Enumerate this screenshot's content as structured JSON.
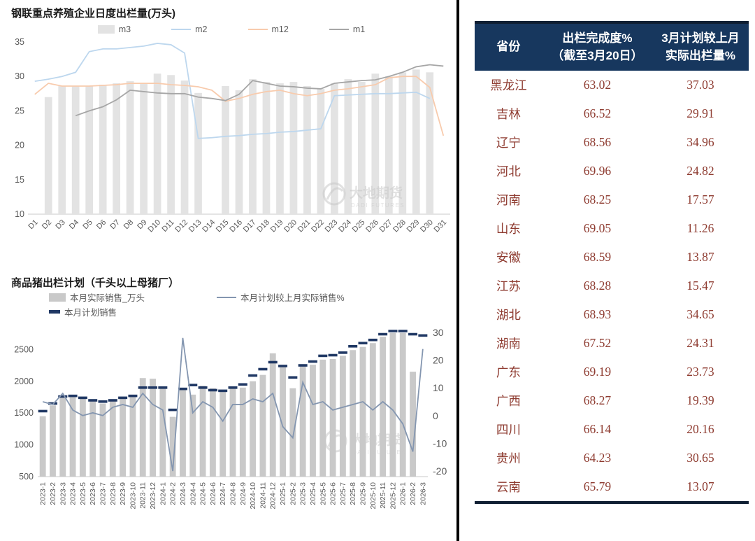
{
  "watermark": {
    "text": "大地期货",
    "subtext": "DADI FUTURES"
  },
  "colors": {
    "divider": "#000000",
    "axis_text": "#595959",
    "watermark": "#c9c9c9",
    "table_header_bg": "#17375e",
    "table_header_text": "#ffffff",
    "table_body_text": "#8e3b30",
    "table_border": "#101f33"
  },
  "chart_data": [
    {
      "type": "bar+line",
      "title": "钢联重点养殖企业日度出栏量(万头)",
      "categories": [
        "D1",
        "D2",
        "D3",
        "D4",
        "D5",
        "D6",
        "D7",
        "D8",
        "D9",
        "D10",
        "D11",
        "D12",
        "D13",
        "D14",
        "D15",
        "D16",
        "D17",
        "D18",
        "D19",
        "D20",
        "D21",
        "D22",
        "D23",
        "D24",
        "D25",
        "D26",
        "D27",
        "D28",
        "D29",
        "D30",
        "D31"
      ],
      "ylim": [
        10,
        35
      ],
      "yticks": [
        10,
        15,
        20,
        25,
        30,
        35
      ],
      "grid": false,
      "legend_position": "top",
      "series": [
        {
          "name": "m3",
          "type": "bar",
          "color": "#e3e3e3",
          "values": [
            null,
            27,
            28.6,
            28.6,
            28.6,
            28.8,
            29,
            29.3,
            29,
            30.4,
            30.2,
            29.4,
            27.6,
            null,
            28.6,
            28,
            29.6,
            29.2,
            29,
            29.2,
            28.6,
            28.2,
            29,
            29.6,
            29.2,
            30.4,
            30,
            30.6,
            31,
            30.6,
            null
          ]
        },
        {
          "name": "m2",
          "type": "line",
          "color": "#bdd7ee",
          "values": [
            29.3,
            29.6,
            30,
            30.6,
            33.6,
            34,
            34,
            34.2,
            34.4,
            34.8,
            34.6,
            33.4,
            21,
            21.1,
            21.3,
            21.4,
            21.6,
            21.7,
            21.9,
            22,
            22.2,
            22.4,
            27.2,
            27.3,
            27.4,
            27.5,
            27.5,
            27.6,
            27.7,
            26.8,
            null
          ]
        },
        {
          "name": "m12",
          "type": "line",
          "color": "#f8cbad",
          "values": [
            27.4,
            29,
            28.6,
            28.6,
            28.6,
            28.7,
            28.8,
            29,
            29,
            29,
            28.8,
            28.7,
            28.5,
            28,
            26.4,
            26.8,
            27.4,
            27.8,
            28,
            27.5,
            27.2,
            27.5,
            28,
            28.2,
            28.5,
            28.8,
            29.8,
            30,
            30,
            28.4,
            21.4
          ]
        },
        {
          "name": "m1",
          "type": "line",
          "color": "#a6a6a6",
          "values": [
            null,
            null,
            null,
            24.3,
            25,
            25.6,
            26.6,
            28,
            27.8,
            27.6,
            27.5,
            27.5,
            27,
            26.8,
            26.5,
            27.4,
            29.4,
            29,
            28.6,
            28.5,
            28.3,
            28.2,
            29,
            29.2,
            29.4,
            29.5,
            30,
            30.6,
            31.4,
            31.7,
            31.5
          ]
        }
      ]
    },
    {
      "type": "bar+line",
      "title": "商品猪出栏计划（千头以上母猪厂）",
      "categories": [
        "2023-1",
        "2023-2",
        "2023-3",
        "2023-4",
        "2023-5",
        "2023-6",
        "2023-7",
        "2023-8",
        "2023-9",
        "2023-10",
        "2023-11",
        "2023-12",
        "2024-1",
        "2024-2",
        "2024-3",
        "2024-4",
        "2024-5",
        "2024-6",
        "2024-7",
        "2024-8",
        "2024-9",
        "2024-10",
        "2024-11",
        "2024-12",
        "2025-1",
        "2025-2",
        "2025-3",
        "2025-4",
        "2025-5",
        "2025-6",
        "2025-7",
        "2025-8",
        "2025-9",
        "2025-10",
        "2025-11",
        "2025-12",
        "2026-1",
        "2026-2",
        "2026-3"
      ],
      "ylim_left": [
        500,
        2900
      ],
      "yticks_left": [
        500,
        1000,
        1500,
        2000,
        2500
      ],
      "ylim_right": [
        -22,
        33
      ],
      "yticks_right": [
        -20,
        -10,
        0,
        10,
        20,
        30
      ],
      "grid": false,
      "legend_position": "top",
      "series": [
        {
          "name": "本月实际销售_万头",
          "type": "bar",
          "axis": "left",
          "color": "#c9c9c9",
          "values": [
            1450,
            1620,
            1760,
            1760,
            1750,
            1700,
            1650,
            1690,
            1740,
            1780,
            2050,
            2040,
            1890,
            1440,
            1890,
            1790,
            1930,
            1890,
            1850,
            1890,
            1900,
            2000,
            2100,
            2440,
            2240,
            1890,
            2250,
            2260,
            2340,
            2350,
            2400,
            2490,
            2540,
            2600,
            2700,
            2760,
            2760,
            2150,
            null
          ]
        },
        {
          "name": "本月计划销售",
          "type": "dash",
          "axis": "left",
          "color": "#203864",
          "values": [
            1530,
            1650,
            1760,
            1770,
            1740,
            1700,
            1680,
            1700,
            1740,
            1770,
            1900,
            1900,
            1900,
            1550,
            1880,
            1940,
            1900,
            1860,
            1850,
            1900,
            1950,
            2090,
            2190,
            2300,
            2240,
            2060,
            2250,
            2310,
            2400,
            2410,
            2450,
            2550,
            2600,
            2650,
            2740,
            2790,
            2790,
            2740,
            2720
          ]
        },
        {
          "name": "本月计划较上月实际销售%",
          "type": "line",
          "axis": "right",
          "color": "#8496b0",
          "values": [
            5,
            4,
            8,
            2,
            0,
            1,
            0,
            3,
            4,
            3,
            8,
            4,
            2,
            -20,
            28,
            1,
            5,
            3,
            -2,
            4,
            4,
            6,
            5,
            8,
            -4,
            -8,
            12,
            4,
            5,
            2,
            3,
            4,
            5,
            2,
            5,
            2,
            -3,
            -13,
            24
          ]
        }
      ]
    }
  ],
  "table": {
    "headers": [
      {
        "lines": [
          "省份"
        ]
      },
      {
        "lines": [
          "出栏完成度%",
          "（截至3月20日）"
        ]
      },
      {
        "lines": [
          "3月计划较上月",
          "实际出栏量%"
        ]
      }
    ],
    "rows": [
      [
        "黑龙江",
        "63.02",
        "37.03"
      ],
      [
        "吉林",
        "66.52",
        "29.91"
      ],
      [
        "辽宁",
        "68.56",
        "34.96"
      ],
      [
        "河北",
        "69.96",
        "24.82"
      ],
      [
        "河南",
        "68.25",
        "17.57"
      ],
      [
        "山东",
        "69.05",
        "11.26"
      ],
      [
        "安徽",
        "68.59",
        "13.87"
      ],
      [
        "江苏",
        "68.28",
        "15.47"
      ],
      [
        "湖北",
        "68.93",
        "34.65"
      ],
      [
        "湖南",
        "67.52",
        "24.31"
      ],
      [
        "广东",
        "69.19",
        "23.73"
      ],
      [
        "广西",
        "68.27",
        "19.39"
      ],
      [
        "四川",
        "66.14",
        "20.16"
      ],
      [
        "贵州",
        "64.23",
        "30.65"
      ],
      [
        "云南",
        "65.79",
        "13.07"
      ]
    ]
  }
}
